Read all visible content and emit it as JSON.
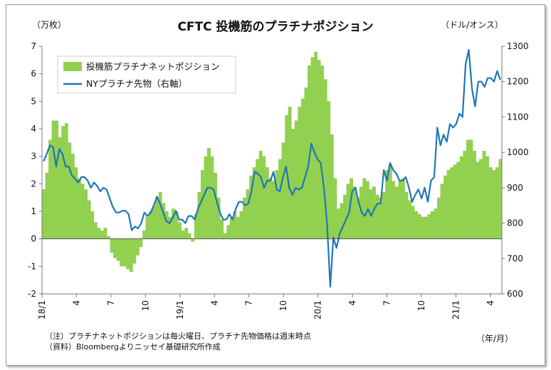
{
  "chart_data": {
    "type": "bar+line",
    "title": "CFTC 投機筋のプラチナポジション",
    "left_axis_unit": "（万枚）",
    "right_axis_unit": "（ドル/オンス）",
    "x_unit": "（年/月）",
    "left_ylim": [
      -2,
      7
    ],
    "right_ylim": [
      600,
      1300
    ],
    "left_ticks": [
      "-2",
      "-1",
      "0",
      "1",
      "2",
      "3",
      "4",
      "5",
      "6",
      "7"
    ],
    "right_ticks": [
      "600",
      "700",
      "800",
      "900",
      "1000",
      "1100",
      "1200",
      "1300"
    ],
    "x_tick_labels": [
      "18/1",
      "4",
      "7",
      "10",
      "19/1",
      "4",
      "7",
      "10",
      "20/1",
      "4",
      "7",
      "10",
      "21/1",
      "4"
    ],
    "grid": false,
    "legend_position": "top-left",
    "series": [
      {
        "name": "投機筋プラチナネットポジション",
        "kind": "bar",
        "axis": "left",
        "color": "#92d050",
        "values": [
          1.8,
          2.4,
          3.6,
          4.3,
          4.3,
          3.7,
          4.1,
          4.2,
          3.5,
          3.1,
          2.6,
          2.2,
          2.0,
          1.8,
          1.4,
          1.0,
          0.6,
          0.4,
          0.3,
          0.4,
          0.1,
          -0.5,
          -0.7,
          -0.8,
          -1.0,
          -1.0,
          -1.1,
          -1.2,
          -0.9,
          -0.6,
          -0.3,
          0.3,
          0.8,
          1.0,
          1.2,
          1.5,
          1.7,
          1.3,
          1.0,
          0.8,
          1.1,
          1.0,
          0.6,
          0.3,
          0.4,
          0.2,
          -0.1,
          0.9,
          1.7,
          2.5,
          3.0,
          3.3,
          3.0,
          2.4,
          1.5,
          0.7,
          0.2,
          0.5,
          0.8,
          1.0,
          0.8,
          1.0,
          1.5,
          1.8,
          2.3,
          2.6,
          2.9,
          3.2,
          3.0,
          2.6,
          2.2,
          2.1,
          2.5,
          2.9,
          3.5,
          4.5,
          4.8,
          4.0,
          4.3,
          4.8,
          5.1,
          5.5,
          6.3,
          6.6,
          6.8,
          6.5,
          6.3,
          5.8,
          5.0,
          3.8,
          2.2,
          1.1,
          1.3,
          1.6,
          2.0,
          2.2,
          1.9,
          1.5,
          1.9,
          2.2,
          2.1,
          1.8,
          1.9,
          1.6,
          1.5,
          1.7,
          2.5,
          2.7,
          2.1,
          1.9,
          2.1,
          2.2,
          1.7,
          1.4,
          1.2,
          1.0,
          0.9,
          0.8,
          0.8,
          0.9,
          1.0,
          1.1,
          1.5,
          2.0,
          2.3,
          2.5,
          2.6,
          2.7,
          2.8,
          3.0,
          3.2,
          3.6,
          3.6,
          3.2,
          2.8,
          2.9,
          3.2,
          3.0,
          2.6,
          2.5,
          2.6,
          2.9
        ]
      },
      {
        "name": "NYプラチナ先物（右軸）",
        "kind": "line",
        "axis": "right",
        "color": "#1f77b4",
        "values": [
          975,
          995,
          1020,
          1015,
          960,
          1010,
          995,
          960,
          960,
          935,
          925,
          915,
          930,
          930,
          920,
          900,
          915,
          905,
          890,
          900,
          895,
          870,
          845,
          830,
          830,
          835,
          835,
          825,
          780,
          790,
          785,
          800,
          830,
          820,
          830,
          850,
          875,
          855,
          830,
          805,
          800,
          815,
          835,
          810,
          810,
          800,
          820,
          820,
          810,
          840,
          860,
          880,
          900,
          900,
          895,
          860,
          830,
          810,
          810,
          825,
          810,
          840,
          860,
          860,
          850,
          855,
          890,
          945,
          940,
          930,
          900,
          920,
          920,
          945,
          895,
          890,
          930,
          960,
          900,
          880,
          900,
          895,
          900,
          930,
          960,
          1025,
          1000,
          980,
          970,
          900,
          800,
          620,
          760,
          730,
          770,
          790,
          810,
          830,
          890,
          900,
          860,
          830,
          820,
          840,
          820,
          840,
          855,
          855,
          950,
          920,
          970,
          950,
          940,
          920,
          920,
          930,
          900,
          860,
          880,
          895,
          870,
          900,
          860,
          920,
          930,
          1070,
          1020,
          1050,
          1030,
          1080,
          1070,
          1080,
          1110,
          1100,
          1250,
          1290,
          1180,
          1130,
          1200,
          1200,
          1185,
          1210,
          1210,
          1200,
          1230,
          1205
        ]
      }
    ]
  },
  "notes": [
    "（注）プラチナネットポジションは毎火曜日、プラチナ先物価格は週末時点",
    "（資料）Bloombergよりニッセイ基礎研究所作成"
  ]
}
